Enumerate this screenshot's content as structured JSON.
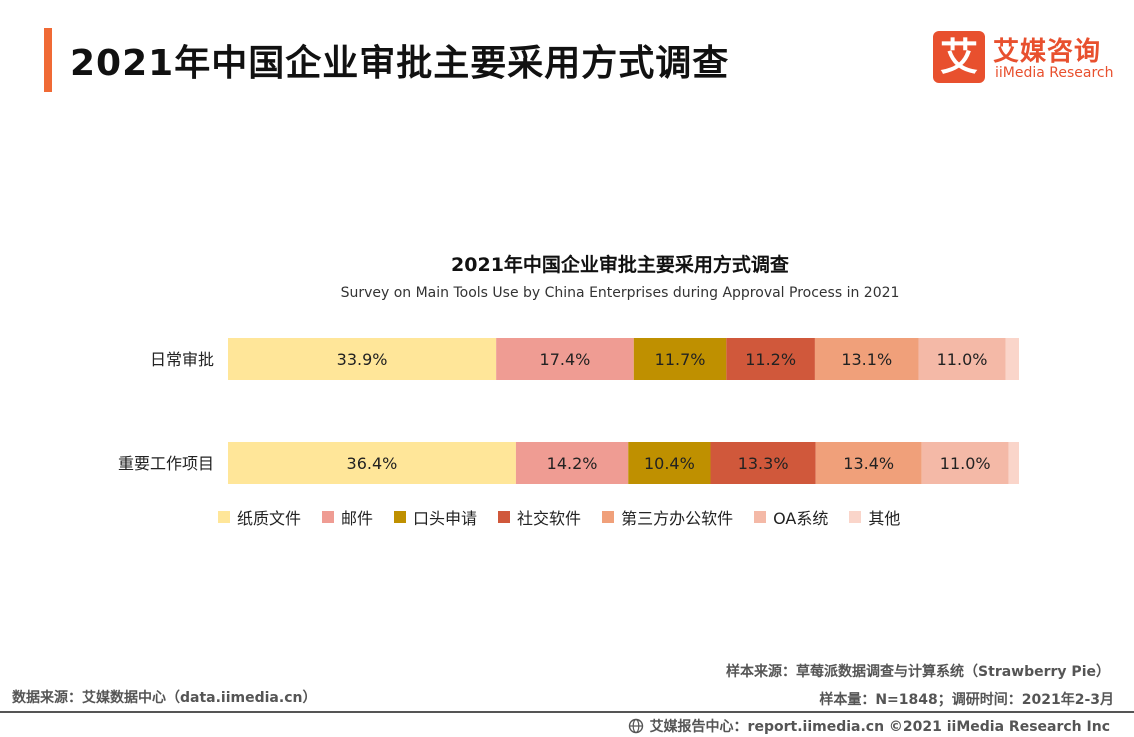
{
  "header": {
    "title": "2021年中国企业审批主要采用方式调查",
    "accent_color": "#f06a35"
  },
  "logo": {
    "mark": "艾",
    "name_cn": "艾媒咨询",
    "name_en": "iiMedia Research",
    "color": "#e8502e"
  },
  "chart_data": {
    "type": "bar",
    "orientation": "horizontal",
    "stacked": true,
    "title": "2021年中国企业审批主要采用方式调查",
    "subtitle": "Survey on Main Tools Use by China Enterprises during Approval Process in 2021",
    "categories": [
      "日常审批",
      "重要工作项目"
    ],
    "series": [
      {
        "name": "纸质文件",
        "color": "#ffe699",
        "values": [
          33.9,
          36.4
        ],
        "labels": [
          "33.9%",
          "36.4%"
        ]
      },
      {
        "name": "邮件",
        "color": "#ef9c93",
        "values": [
          17.4,
          14.2
        ],
        "labels": [
          "17.4%",
          "14.2%"
        ]
      },
      {
        "name": "口头申请",
        "color": "#bf9000",
        "values": [
          11.7,
          10.4
        ],
        "labels": [
          "11.7%",
          "10.4%"
        ]
      },
      {
        "name": "社交软件",
        "color": "#d0583b",
        "values": [
          11.2,
          13.3
        ],
        "labels": [
          "11.2%",
          "13.3%"
        ]
      },
      {
        "name": "第三方办公软件",
        "color": "#f0a07a",
        "values": [
          13.1,
          13.4
        ],
        "labels": [
          "13.1%",
          "13.4%"
        ]
      },
      {
        "name": "OA系统",
        "color": "#f4b9a7",
        "values": [
          11.0,
          11.0
        ],
        "labels": [
          "11.0%",
          "11.0%"
        ]
      },
      {
        "name": "其他",
        "color": "#fad5ca",
        "values": [
          1.7,
          1.3
        ],
        "labels": [
          "",
          ""
        ]
      }
    ],
    "xlim": [
      0,
      100
    ],
    "legend_position": "bottom",
    "grid": false
  },
  "footer": {
    "sample_source": "样本来源：草莓派数据调查与计算系统（Strawberry Pie）",
    "sample_size": "样本量：N=1848；调研时间：2021年2-3月",
    "data_source": "数据来源：艾媒数据中心（data.iimedia.cn）",
    "report_center": "艾媒报告中心：report.iimedia.cn ©2021 iiMedia Research Inc"
  }
}
